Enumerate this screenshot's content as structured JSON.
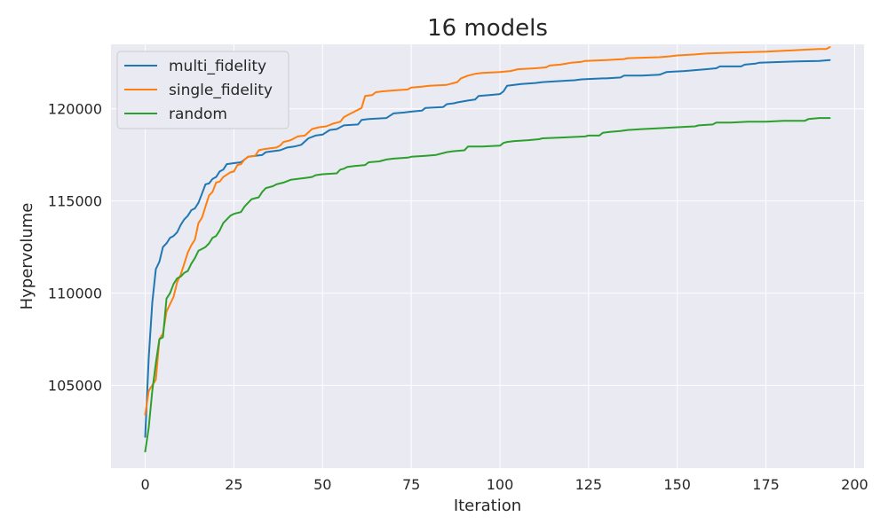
{
  "chart_data": {
    "type": "line",
    "title": "16 models",
    "xlabel": "Iteration",
    "ylabel": "Hypervolume",
    "xlim": [
      -9.65,
      202.65
    ],
    "ylim": [
      100500,
      123500
    ],
    "xticks": [
      0,
      25,
      50,
      75,
      100,
      125,
      150,
      175,
      200
    ],
    "xtick_labels": [
      "0",
      "25",
      "50",
      "75",
      "100",
      "125",
      "150",
      "175",
      "200"
    ],
    "yticks": [
      105000,
      110000,
      115000,
      120000
    ],
    "ytick_labels": [
      "105000",
      "110000",
      "115000",
      "120000"
    ],
    "grid": true,
    "legend": "top-left",
    "series": [
      {
        "name": "multi_fidelity",
        "color": "#1f77b4",
        "points": [
          [
            0,
            102200
          ],
          [
            1,
            106500
          ],
          [
            2,
            109500
          ],
          [
            3,
            111300
          ],
          [
            4,
            111700
          ],
          [
            5,
            112500
          ],
          [
            6,
            112700
          ],
          [
            7,
            113000
          ],
          [
            8,
            113100
          ],
          [
            9,
            113300
          ],
          [
            10,
            113700
          ],
          [
            11,
            114000
          ],
          [
            12,
            114200
          ],
          [
            13,
            114500
          ],
          [
            14,
            114600
          ],
          [
            15,
            114900
          ],
          [
            16,
            115400
          ],
          [
            17,
            115900
          ],
          [
            18,
            115950
          ],
          [
            19,
            116200
          ],
          [
            20,
            116300
          ],
          [
            21,
            116600
          ],
          [
            22,
            116700
          ],
          [
            23,
            117000
          ],
          [
            25,
            117050
          ],
          [
            27,
            117100
          ],
          [
            29,
            117400
          ],
          [
            31,
            117450
          ],
          [
            33,
            117500
          ],
          [
            34,
            117650
          ],
          [
            36,
            117700
          ],
          [
            38,
            117750
          ],
          [
            40,
            117900
          ],
          [
            42,
            117950
          ],
          [
            44,
            118050
          ],
          [
            46,
            118400
          ],
          [
            48,
            118550
          ],
          [
            50,
            118600
          ],
          [
            52,
            118850
          ],
          [
            54,
            118900
          ],
          [
            56,
            119100
          ],
          [
            60,
            119150
          ],
          [
            61,
            119400
          ],
          [
            63,
            119450
          ],
          [
            68,
            119500
          ],
          [
            70,
            119750
          ],
          [
            73,
            119800
          ],
          [
            75,
            119850
          ],
          [
            78,
            119900
          ],
          [
            79,
            120050
          ],
          [
            84,
            120100
          ],
          [
            85,
            120250
          ],
          [
            87,
            120300
          ],
          [
            88,
            120350
          ],
          [
            91,
            120450
          ],
          [
            93,
            120500
          ],
          [
            94,
            120700
          ],
          [
            97,
            120750
          ],
          [
            100,
            120800
          ],
          [
            101,
            120950
          ],
          [
            102,
            121250
          ],
          [
            104,
            121300
          ],
          [
            106,
            121350
          ],
          [
            110,
            121400
          ],
          [
            112,
            121450
          ],
          [
            116,
            121500
          ],
          [
            121,
            121550
          ],
          [
            123,
            121600
          ],
          [
            129,
            121650
          ],
          [
            130,
            121650
          ],
          [
            134,
            121700
          ],
          [
            135,
            121800
          ],
          [
            140,
            121800
          ],
          [
            145,
            121850
          ],
          [
            147,
            122000
          ],
          [
            152,
            122050
          ],
          [
            155,
            122100
          ],
          [
            158,
            122150
          ],
          [
            161,
            122200
          ],
          [
            162,
            122300
          ],
          [
            168,
            122300
          ],
          [
            169,
            122400
          ],
          [
            172,
            122450
          ],
          [
            173,
            122500
          ],
          [
            180,
            122550
          ],
          [
            185,
            122580
          ],
          [
            190,
            122600
          ],
          [
            193,
            122650
          ]
        ]
      },
      {
        "name": "single_fidelity",
        "color": "#ff7f0e",
        "points": [
          [
            0,
            103400
          ],
          [
            1,
            104700
          ],
          [
            2,
            105000
          ],
          [
            3,
            105300
          ],
          [
            4,
            107500
          ],
          [
            5,
            107800
          ],
          [
            6,
            109000
          ],
          [
            7,
            109400
          ],
          [
            8,
            109800
          ],
          [
            9,
            110600
          ],
          [
            10,
            111000
          ],
          [
            11,
            111600
          ],
          [
            12,
            112200
          ],
          [
            13,
            112600
          ],
          [
            14,
            112900
          ],
          [
            15,
            113800
          ],
          [
            16,
            114100
          ],
          [
            17,
            114700
          ],
          [
            18,
            115300
          ],
          [
            19,
            115500
          ],
          [
            20,
            116000
          ],
          [
            21,
            116050
          ],
          [
            22,
            116300
          ],
          [
            24,
            116550
          ],
          [
            25,
            116600
          ],
          [
            26,
            116950
          ],
          [
            27,
            117000
          ],
          [
            28,
            117250
          ],
          [
            29,
            117400
          ],
          [
            31,
            117450
          ],
          [
            32,
            117750
          ],
          [
            33,
            117800
          ],
          [
            35,
            117850
          ],
          [
            37,
            117900
          ],
          [
            38,
            118000
          ],
          [
            39,
            118200
          ],
          [
            41,
            118300
          ],
          [
            43,
            118500
          ],
          [
            45,
            118550
          ],
          [
            47,
            118900
          ],
          [
            49,
            119000
          ],
          [
            51,
            119050
          ],
          [
            53,
            119200
          ],
          [
            55,
            119300
          ],
          [
            56,
            119550
          ],
          [
            58,
            119750
          ],
          [
            60,
            119950
          ],
          [
            61,
            120050
          ],
          [
            62,
            120700
          ],
          [
            64,
            120750
          ],
          [
            65,
            120900
          ],
          [
            67,
            120950
          ],
          [
            70,
            121000
          ],
          [
            74,
            121050
          ],
          [
            75,
            121150
          ],
          [
            78,
            121200
          ],
          [
            80,
            121250
          ],
          [
            85,
            121300
          ],
          [
            87,
            121400
          ],
          [
            88,
            121450
          ],
          [
            89,
            121650
          ],
          [
            91,
            121800
          ],
          [
            93,
            121900
          ],
          [
            95,
            121950
          ],
          [
            100,
            122000
          ],
          [
            103,
            122050
          ],
          [
            105,
            122150
          ],
          [
            110,
            122200
          ],
          [
            113,
            122250
          ],
          [
            114,
            122350
          ],
          [
            117,
            122400
          ],
          [
            120,
            122500
          ],
          [
            123,
            122550
          ],
          [
            124,
            122600
          ],
          [
            130,
            122650
          ],
          [
            135,
            122700
          ],
          [
            136,
            122750
          ],
          [
            145,
            122800
          ],
          [
            148,
            122850
          ],
          [
            150,
            122900
          ],
          [
            155,
            122950
          ],
          [
            158,
            123000
          ],
          [
            165,
            123050
          ],
          [
            175,
            123100
          ],
          [
            180,
            123150
          ],
          [
            185,
            123200
          ],
          [
            190,
            123250
          ],
          [
            192,
            123250
          ],
          [
            193,
            123350
          ]
        ]
      },
      {
        "name": "random",
        "color": "#2ca02c",
        "points": [
          [
            0,
            101400
          ],
          [
            1,
            102700
          ],
          [
            2,
            104700
          ],
          [
            3,
            106200
          ],
          [
            4,
            107500
          ],
          [
            5,
            107600
          ],
          [
            6,
            109700
          ],
          [
            7,
            110000
          ],
          [
            8,
            110500
          ],
          [
            9,
            110800
          ],
          [
            10,
            110900
          ],
          [
            11,
            111100
          ],
          [
            12,
            111200
          ],
          [
            13,
            111600
          ],
          [
            14,
            111900
          ],
          [
            15,
            112300
          ],
          [
            16,
            112400
          ],
          [
            17,
            112500
          ],
          [
            18,
            112700
          ],
          [
            19,
            113000
          ],
          [
            20,
            113100
          ],
          [
            21,
            113400
          ],
          [
            22,
            113800
          ],
          [
            23,
            114000
          ],
          [
            24,
            114200
          ],
          [
            25,
            114300
          ],
          [
            27,
            114400
          ],
          [
            28,
            114700
          ],
          [
            29,
            114900
          ],
          [
            30,
            115100
          ],
          [
            32,
            115200
          ],
          [
            33,
            115500
          ],
          [
            34,
            115700
          ],
          [
            36,
            115800
          ],
          [
            37,
            115900
          ],
          [
            39,
            116000
          ],
          [
            41,
            116150
          ],
          [
            43,
            116200
          ],
          [
            45,
            116250
          ],
          [
            47,
            116300
          ],
          [
            48,
            116400
          ],
          [
            50,
            116450
          ],
          [
            54,
            116500
          ],
          [
            55,
            116700
          ],
          [
            56,
            116750
          ],
          [
            57,
            116850
          ],
          [
            59,
            116900
          ],
          [
            62,
            116950
          ],
          [
            63,
            117100
          ],
          [
            66,
            117150
          ],
          [
            68,
            117250
          ],
          [
            70,
            117300
          ],
          [
            74,
            117350
          ],
          [
            75,
            117400
          ],
          [
            79,
            117450
          ],
          [
            82,
            117500
          ],
          [
            85,
            117650
          ],
          [
            87,
            117700
          ],
          [
            90,
            117750
          ],
          [
            91,
            117950
          ],
          [
            95,
            117950
          ],
          [
            100,
            118000
          ],
          [
            101,
            118150
          ],
          [
            102,
            118200
          ],
          [
            104,
            118250
          ],
          [
            108,
            118300
          ],
          [
            111,
            118350
          ],
          [
            112,
            118400
          ],
          [
            118,
            118450
          ],
          [
            124,
            118500
          ],
          [
            125,
            118550
          ],
          [
            128,
            118550
          ],
          [
            129,
            118700
          ],
          [
            131,
            118750
          ],
          [
            134,
            118800
          ],
          [
            136,
            118850
          ],
          [
            140,
            118900
          ],
          [
            145,
            118950
          ],
          [
            150,
            119000
          ],
          [
            155,
            119050
          ],
          [
            156,
            119100
          ],
          [
            160,
            119150
          ],
          [
            161,
            119250
          ],
          [
            165,
            119250
          ],
          [
            170,
            119300
          ],
          [
            175,
            119300
          ],
          [
            180,
            119350
          ],
          [
            186,
            119350
          ],
          [
            187,
            119450
          ],
          [
            190,
            119500
          ],
          [
            193,
            119500
          ]
        ]
      }
    ]
  }
}
